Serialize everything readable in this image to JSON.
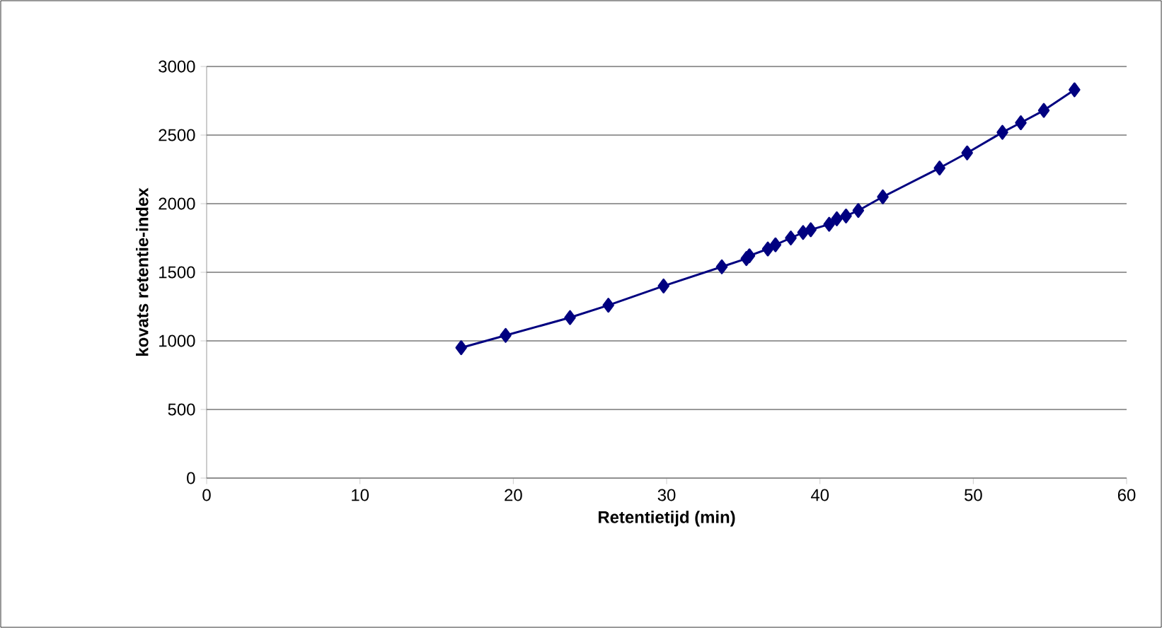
{
  "chart_data": {
    "type": "line",
    "xlabel": "Retentietijd (min)",
    "ylabel": "kovats retentie-index",
    "series": [
      {
        "color": "#000080",
        "x": [
          16.6,
          19.5,
          23.7,
          26.2,
          29.8,
          33.6,
          35.2,
          35.4,
          36.6,
          37.1,
          38.1,
          38.9,
          39.4,
          40.6,
          41.1,
          41.7,
          42.5,
          44.1,
          47.8,
          49.6,
          51.9,
          53.1,
          54.6,
          56.6
        ],
        "values": [
          950,
          1040,
          1170,
          1260,
          1400,
          1540,
          1600,
          1620,
          1670,
          1700,
          1750,
          1790,
          1810,
          1850,
          1890,
          1910,
          1950,
          2050,
          2260,
          2370,
          2520,
          2590,
          2680,
          2830
        ]
      }
    ],
    "xlim": [
      0,
      60
    ],
    "xticks": [
      0,
      10,
      20,
      30,
      40,
      50,
      60
    ],
    "ylim": [
      0,
      3000
    ],
    "yticks": [
      0,
      500,
      1000,
      1500,
      2000,
      2500,
      3000
    ],
    "grid": "y",
    "marker": "diamond",
    "line_style": "solid"
  }
}
